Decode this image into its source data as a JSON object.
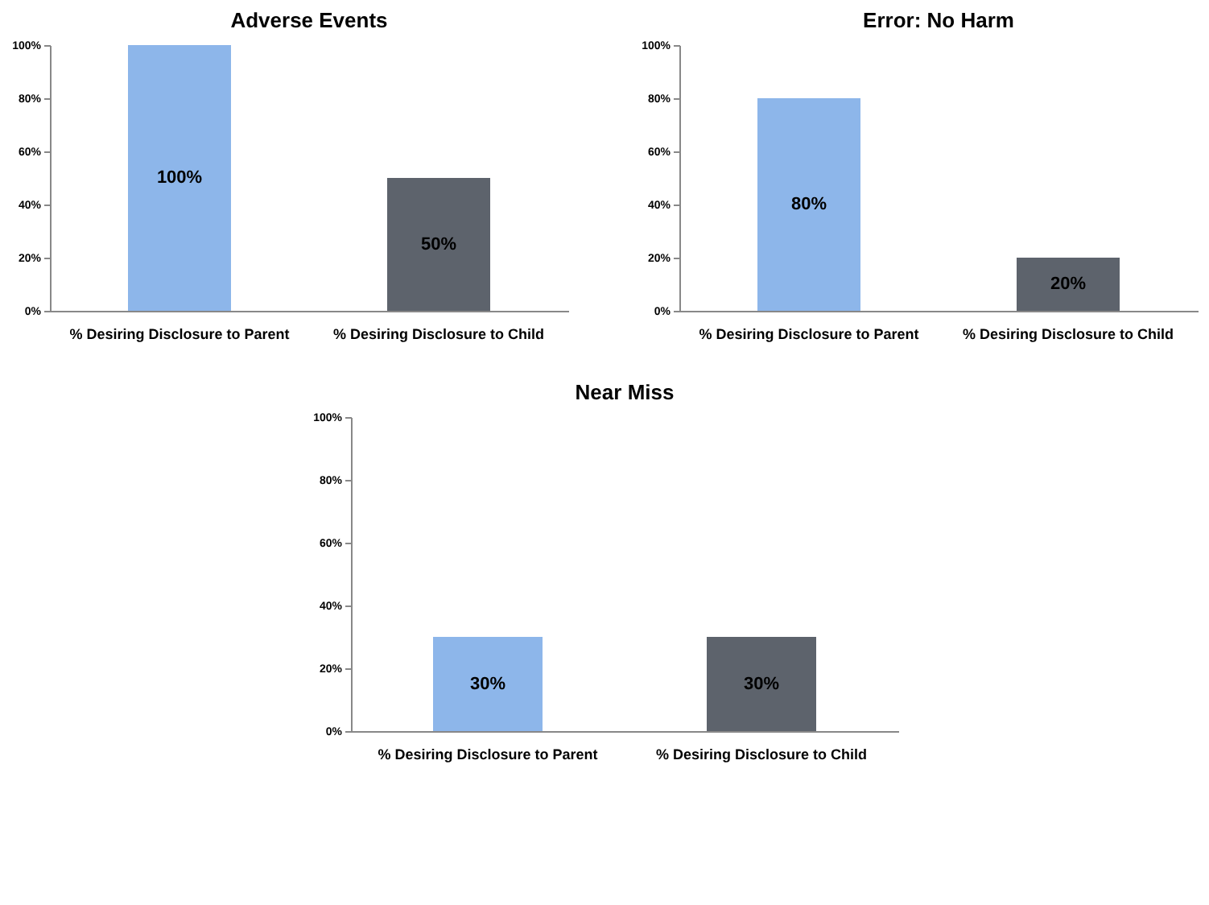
{
  "chart_data": [
    {
      "type": "bar",
      "title": "Adverse Events",
      "categories": [
        "% Desiring Disclosure to Parent",
        "% Desiring Disclosure to Child"
      ],
      "values": [
        100,
        50
      ],
      "colors": [
        "#8db6ea",
        "#5d636c"
      ],
      "value_labels": [
        "100%",
        "50%"
      ],
      "ylim": [
        0,
        100
      ],
      "yticks": [
        {
          "value": 0,
          "label": "0%"
        },
        {
          "value": 20,
          "label": "20%"
        },
        {
          "value": 40,
          "label": "40%"
        },
        {
          "value": 60,
          "label": "60%"
        },
        {
          "value": 80,
          "label": "80%"
        },
        {
          "value": 100,
          "label": "100%"
        }
      ],
      "grid": false,
      "legend": false
    },
    {
      "type": "bar",
      "title": "Error: No Harm",
      "categories": [
        "% Desiring Disclosure to Parent",
        "% Desiring Disclosure to Child"
      ],
      "values": [
        80,
        20
      ],
      "colors": [
        "#8db6ea",
        "#5d636c"
      ],
      "value_labels": [
        "80%",
        "20%"
      ],
      "ylim": [
        0,
        100
      ],
      "yticks": [
        {
          "value": 0,
          "label": "0%"
        },
        {
          "value": 20,
          "label": "20%"
        },
        {
          "value": 40,
          "label": "40%"
        },
        {
          "value": 60,
          "label": "60%"
        },
        {
          "value": 80,
          "label": "80%"
        },
        {
          "value": 100,
          "label": "100%"
        }
      ],
      "grid": false,
      "legend": false
    },
    {
      "type": "bar",
      "title": "Near Miss",
      "categories": [
        "% Desiring Disclosure to Parent",
        "% Desiring Disclosure to Child"
      ],
      "values": [
        30,
        30
      ],
      "colors": [
        "#8db6ea",
        "#5d636c"
      ],
      "value_labels": [
        "30%",
        "30%"
      ],
      "ylim": [
        0,
        100
      ],
      "yticks": [
        {
          "value": 0,
          "label": "0%"
        },
        {
          "value": 20,
          "label": "20%"
        },
        {
          "value": 40,
          "label": "40%"
        },
        {
          "value": 60,
          "label": "60%"
        },
        {
          "value": 80,
          "label": "80%"
        },
        {
          "value": 100,
          "label": "100%"
        }
      ],
      "grid": false,
      "legend": false
    }
  ]
}
